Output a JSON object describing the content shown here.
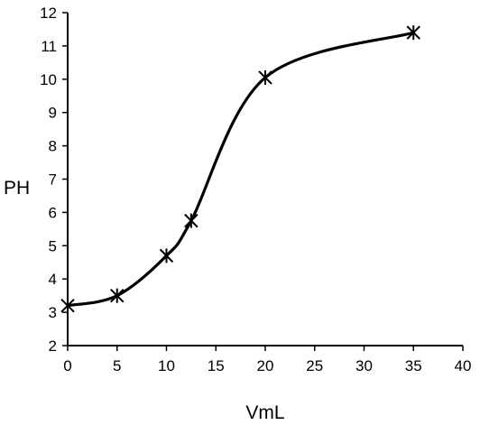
{
  "chart_data": {
    "type": "line",
    "xlabel": "VmL",
    "ylabel": "PH",
    "xlim": [
      0,
      40
    ],
    "ylim": [
      2,
      12
    ],
    "x_ticks": [
      "0",
      "5",
      "10",
      "15",
      "20",
      "25",
      "30",
      "35",
      "40"
    ],
    "y_ticks": [
      "2",
      "3",
      "4",
      "5",
      "6",
      "7",
      "8",
      "9",
      "10",
      "11",
      "12"
    ],
    "grid": false,
    "legend": "none",
    "marker": "asterisk",
    "line_color": "#000000",
    "smooth": true,
    "series": [
      {
        "x": [
          0,
          5,
          10,
          12.5,
          20,
          35
        ],
        "y": [
          3.2,
          3.5,
          4.7,
          5.75,
          10.05,
          11.4
        ]
      }
    ]
  }
}
